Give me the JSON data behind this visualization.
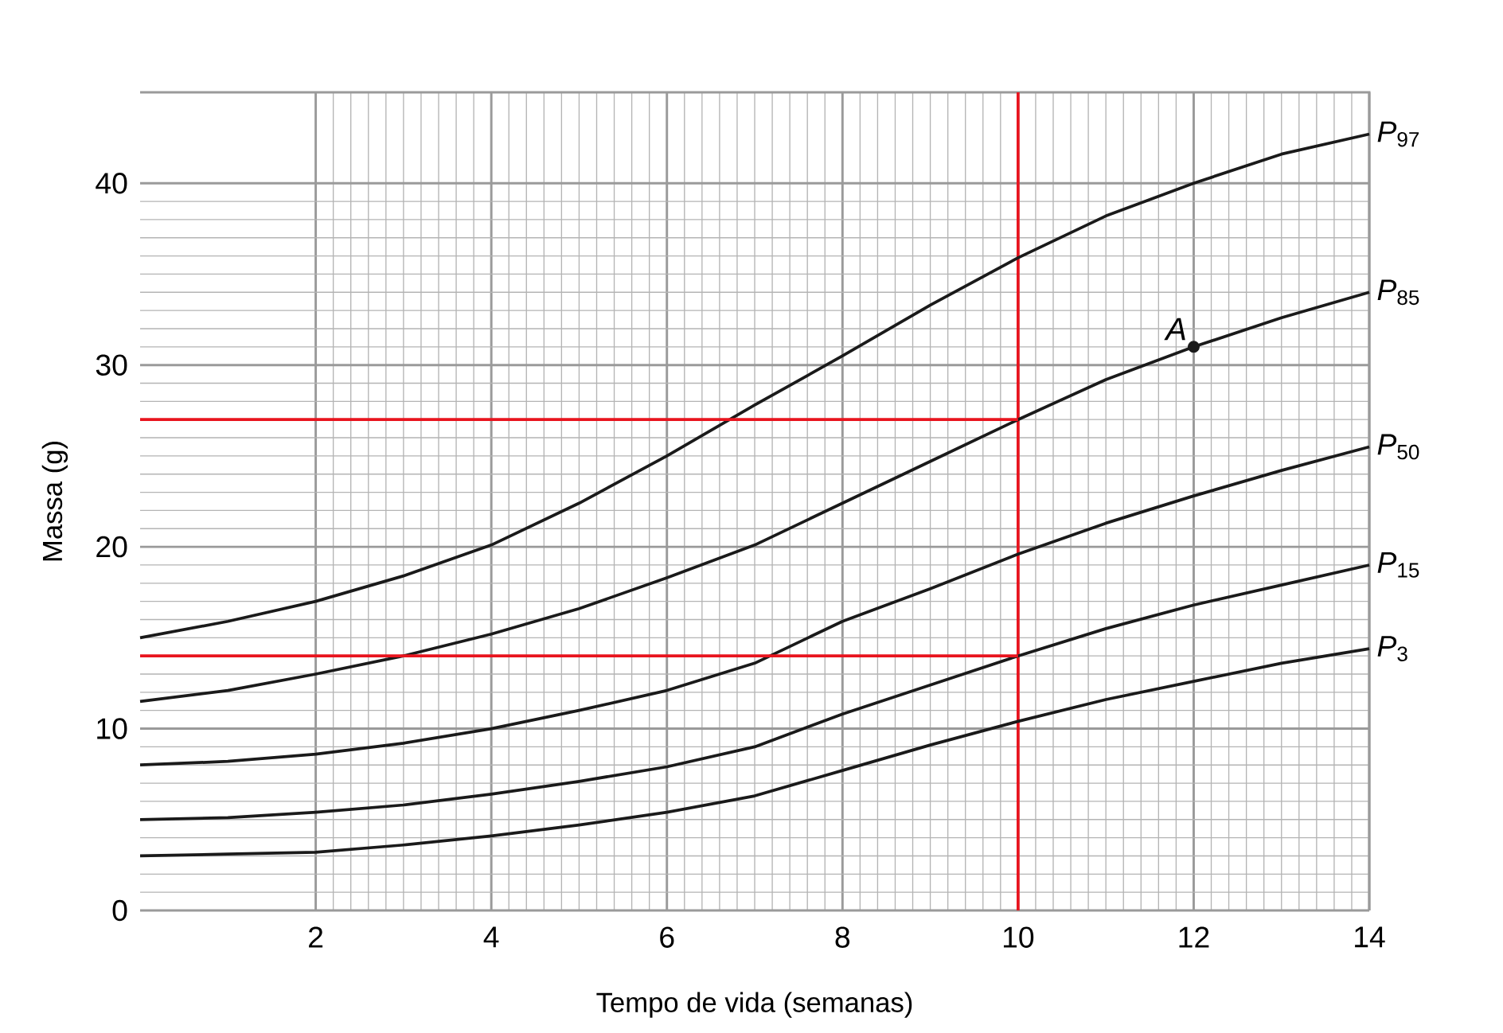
{
  "chart_data": {
    "type": "line",
    "xlabel": "Tempo de vida (semanas)",
    "ylabel": "Massa (g)",
    "x": [
      0,
      1,
      2,
      3,
      4,
      5,
      6,
      7,
      8,
      9,
      10,
      11,
      12,
      13,
      14
    ],
    "xlim": [
      0,
      14
    ],
    "ylim": [
      0,
      45
    ],
    "xticks": [
      2,
      4,
      6,
      8,
      10,
      12,
      14
    ],
    "yticks": [
      {
        "value": 0,
        "label": "0"
      },
      10,
      20,
      30,
      40
    ],
    "grid": true,
    "series": [
      {
        "name": "*P*$_{97}$",
        "color": "#1a1a1a",
        "marker": "none",
        "values": [
          15,
          15.9,
          17,
          18.4,
          20.1,
          22.4,
          25,
          27.8,
          30.5,
          33.3,
          35.9,
          38.2,
          40,
          41.6,
          42.7
        ]
      },
      {
        "name": "*P*$_{85}$",
        "color": "#1a1a1a",
        "marker": "none",
        "values": [
          11.5,
          12.1,
          13,
          14,
          15.2,
          16.6,
          18.3,
          20.1,
          22.4,
          24.7,
          27,
          29.2,
          31,
          32.6,
          34
        ]
      },
      {
        "name": "*P*$_{50}$",
        "color": "#1a1a1a",
        "marker": "none",
        "values": [
          8,
          8.2,
          8.6,
          9.2,
          10,
          11,
          12.1,
          13.6,
          15.9,
          17.7,
          19.6,
          21.3,
          22.8,
          24.2,
          25.5
        ]
      },
      {
        "name": "*P*$_{15}$",
        "color": "#1a1a1a",
        "marker": "none",
        "values": [
          5,
          5.1,
          5.4,
          5.8,
          6.4,
          7.1,
          7.9,
          9,
          10.8,
          12.4,
          14,
          15.5,
          16.8,
          17.9,
          19
        ]
      },
      {
        "name": "*P*$_{3}$",
        "color": "#1a1a1a",
        "marker": "none",
        "values": [
          3,
          3.1,
          3.2,
          3.6,
          4.1,
          4.7,
          5.4,
          6.3,
          7.7,
          9.1,
          10.4,
          11.6,
          12.6,
          13.6,
          14.4
        ]
      },
      {
        "type": "line",
        "color": "#e8141e",
        "marker": "none",
        "x": [
          0,
          10
        ],
        "values": [
          27,
          27
        ]
      },
      {
        "type": "line",
        "color": "#e8141e",
        "marker": "none",
        "x": [
          0,
          10
        ],
        "values": [
          14,
          14
        ]
      },
      {
        "type": "scatter",
        "color": "#1a1a1a",
        "marker": "circle",
        "x": [
          12
        ],
        "values": [
          31
        ]
      }
    ],
    "ref_lines": [
      {
        "axis": "x",
        "value": 10,
        "color": "#e8141e"
      }
    ],
    "annotations": [
      {
        "text": "A",
        "x": 12,
        "y": 31
      }
    ]
  }
}
